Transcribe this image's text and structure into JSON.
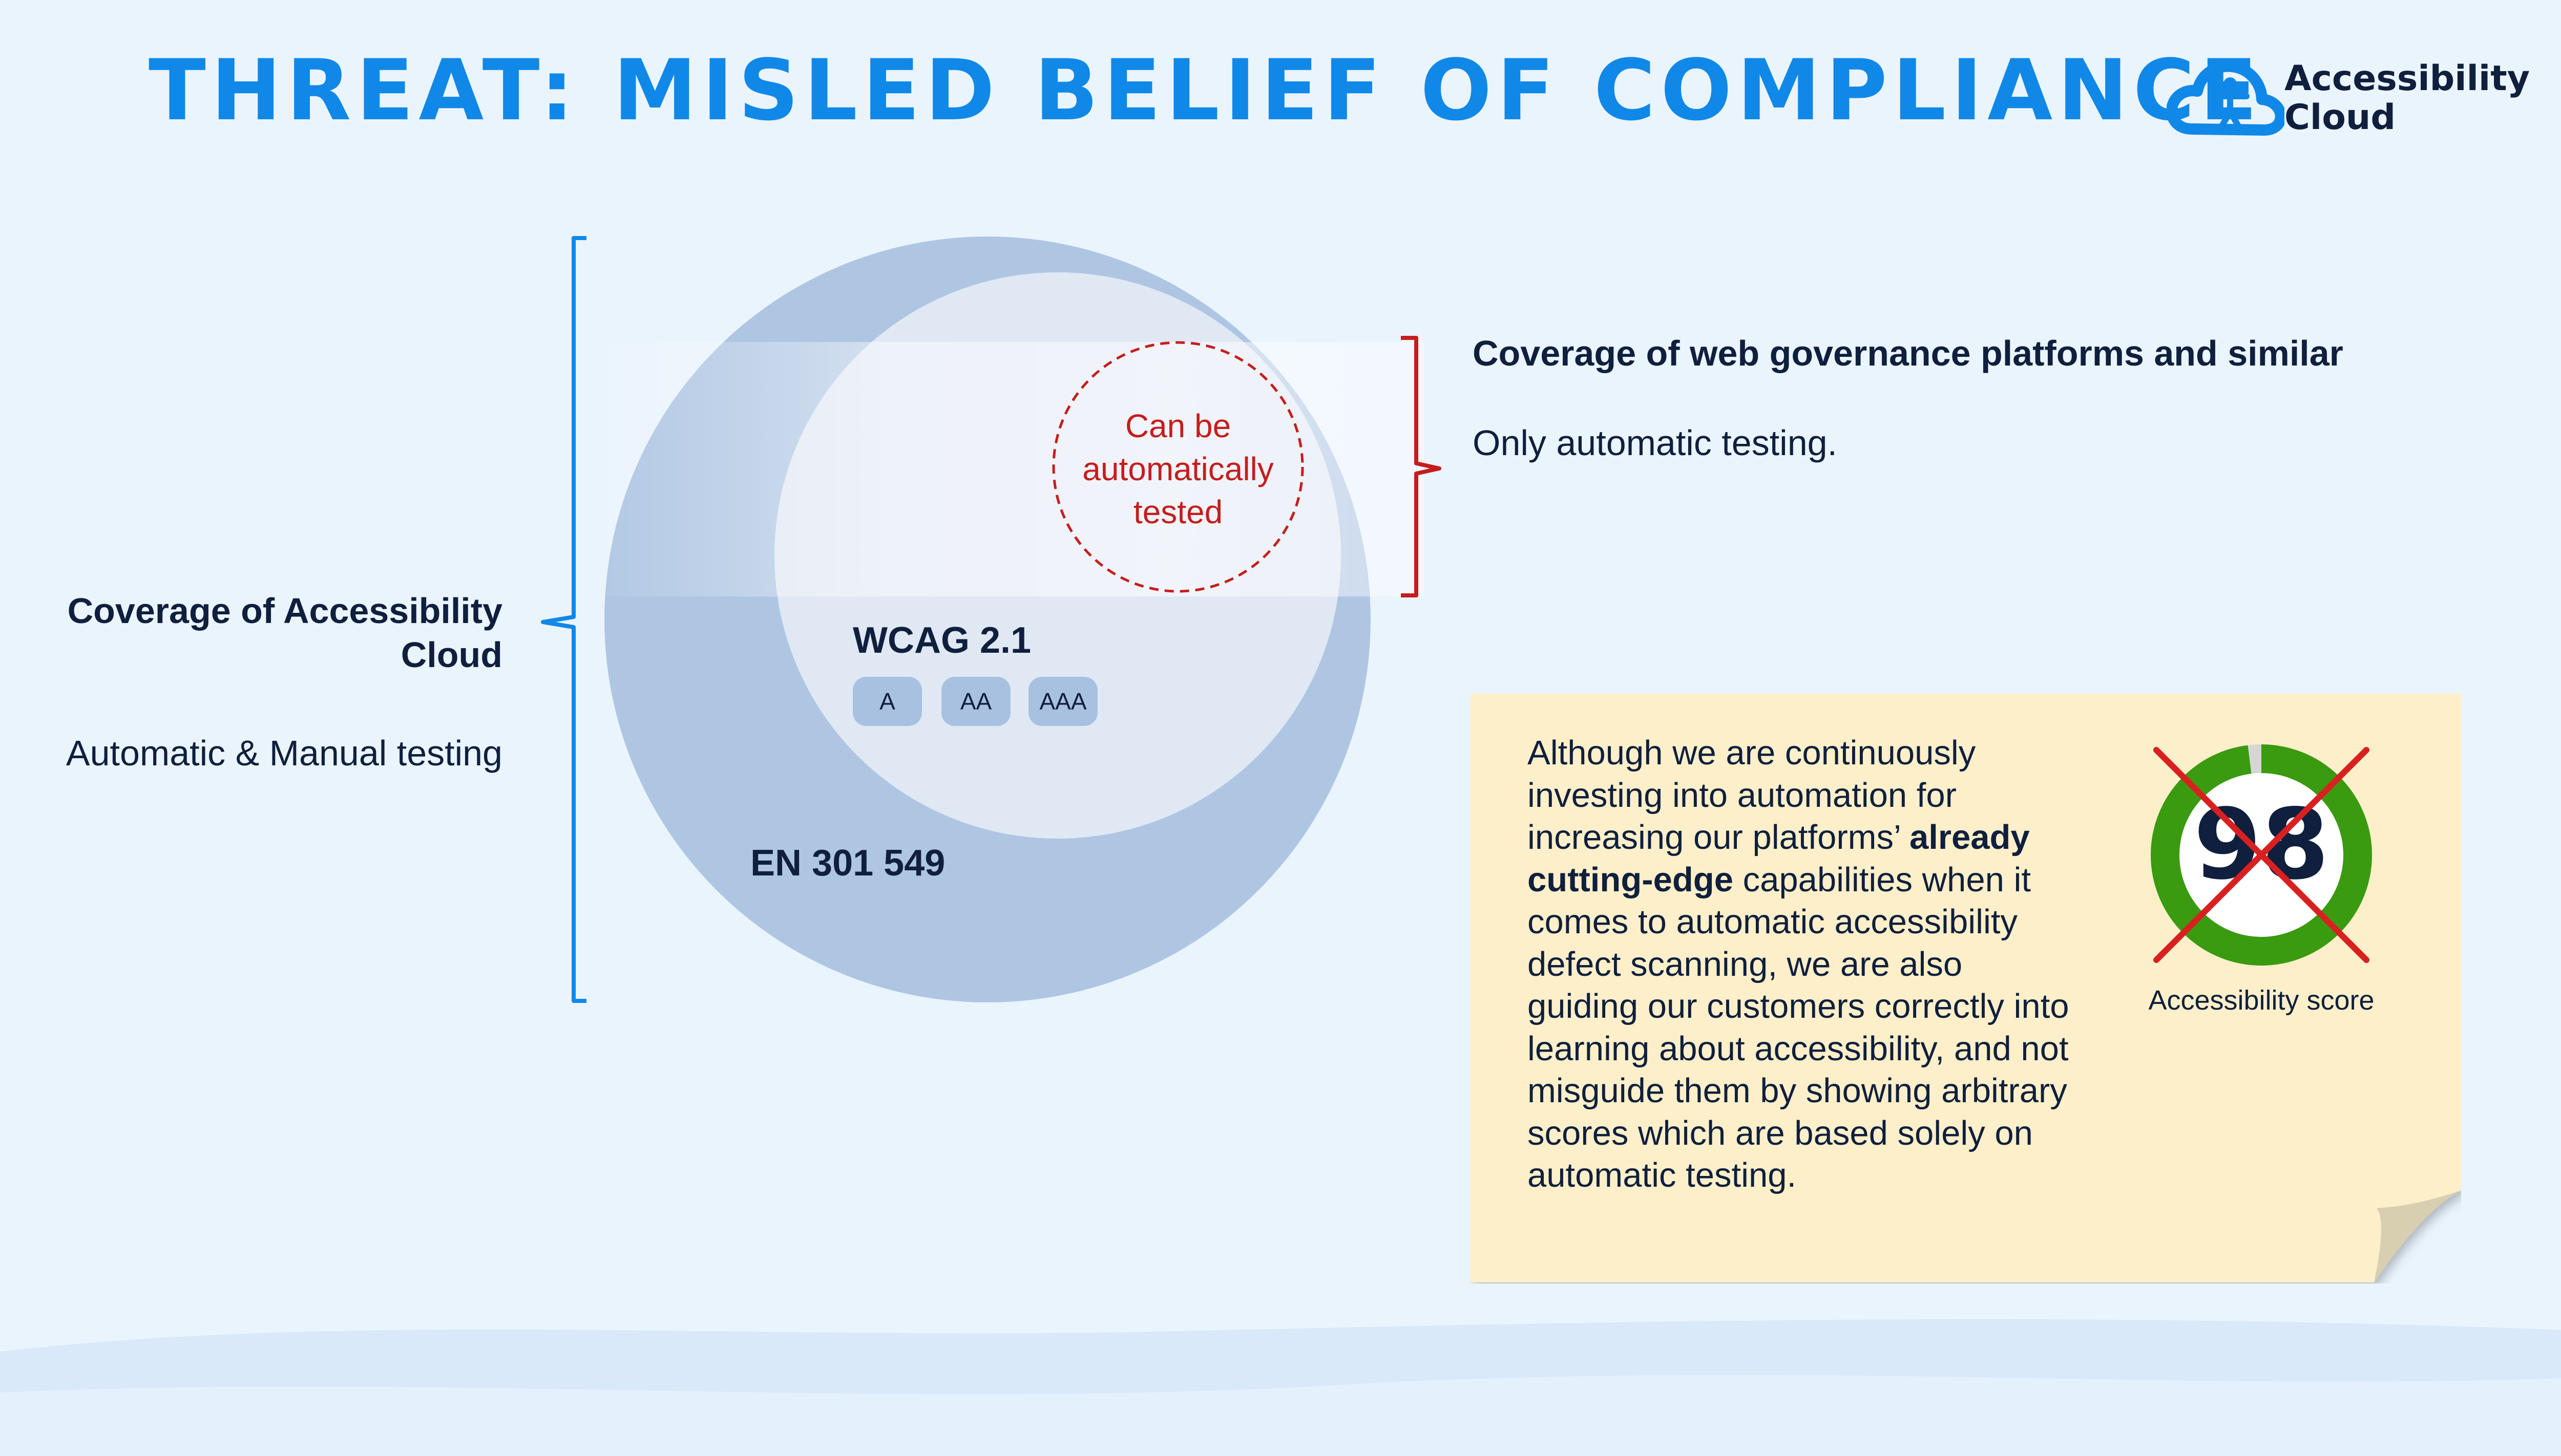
{
  "title": "THREAT: MISLED BELIEF OF COMPLIANCE",
  "logo": {
    "line1": "Accessibility",
    "line2": "Cloud",
    "icon": "cloud-person-icon"
  },
  "left_coverage": {
    "heading": "Coverage of Accessibility Cloud",
    "subtext": "Automatic & Manual testing"
  },
  "diagram": {
    "outer_label": "EN 301 549",
    "inner_label": "WCAG 2.1",
    "levels": [
      "A",
      "AA",
      "AAA"
    ],
    "auto_circle_label": "Can be automatically tested"
  },
  "right_coverage": {
    "heading": "Coverage of web governance platforms and similar",
    "subtext": "Only automatic testing."
  },
  "note": {
    "text_before": "Although we are continuously investing into automation for increasing our platforms’ ",
    "text_bold": "already cutting-edge",
    "text_after": " capabilities when it comes to automatic accessibility defect scanning, we are also guiding our customers correctly into learning about accessibility, and not misguide them by showing arbitrary scores which are based solely on automatic testing.",
    "score_value": "98",
    "score_label": "Accessibility score",
    "score_fraction": 0.98
  },
  "colors": {
    "title": "#1088e8",
    "bracket_left": "#1088e8",
    "bracket_right": "#c51d1d",
    "outer_circle": "#afc6e3",
    "inner_circle": "#e0e8f4",
    "score_ring": "#3a9a10",
    "cross": "#d92020",
    "note_bg": "#fdefc9"
  }
}
